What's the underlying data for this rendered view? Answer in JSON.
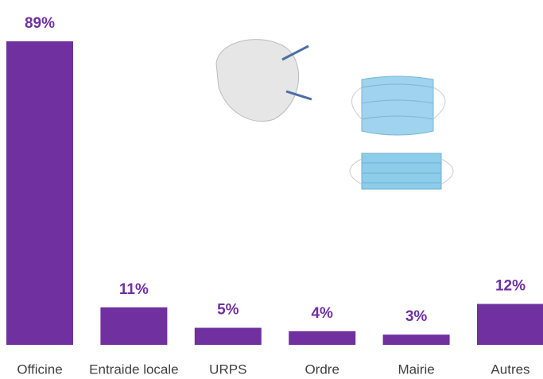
{
  "chart_data": {
    "type": "bar",
    "categories": [
      "Officine",
      "Entraide locale",
      "URPS",
      "Ordre",
      "Mairie",
      "Autres"
    ],
    "values": [
      89,
      11,
      5,
      4,
      3,
      12
    ],
    "value_labels": [
      "89%",
      "11%",
      "5%",
      "4%",
      "3%",
      "12%"
    ],
    "color": "#7030a0"
  }
}
